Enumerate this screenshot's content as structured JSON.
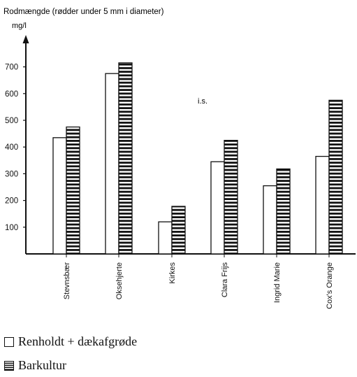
{
  "chart_data": {
    "type": "bar",
    "title": "Rodmængde (rødder under 5 mm i diameter)",
    "unit": "mg/l",
    "annotation": "i.s.",
    "categories": [
      "Stevnsbær",
      "Oksehjerte",
      "Kirkes",
      "Clara Frijs",
      "Ingrid Marie",
      "Cox's Orange"
    ],
    "series": [
      {
        "name": "Renholdt + dækafgrøde",
        "values": [
          435,
          675,
          120,
          345,
          255,
          365
        ],
        "style": "open"
      },
      {
        "name": "Barkultur",
        "values": [
          475,
          715,
          178,
          425,
          318,
          575
        ],
        "style": "hatched"
      }
    ],
    "yticks": [
      100,
      200,
      300,
      400,
      500,
      600,
      700
    ],
    "ylim": [
      0,
      780
    ],
    "grid": false,
    "legend": "bottom-left"
  },
  "colors": {
    "ink": "#111111",
    "paper": "#ffffff"
  }
}
